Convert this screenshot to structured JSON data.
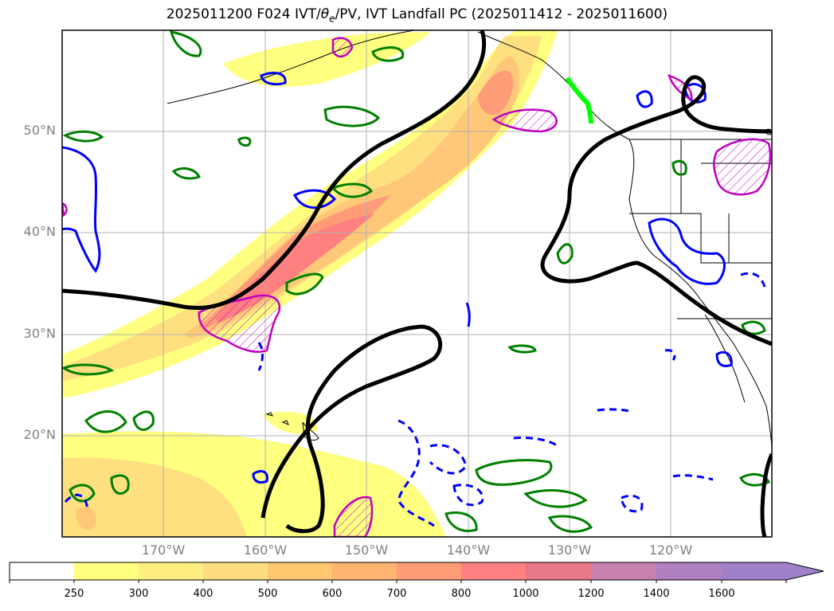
{
  "title": {
    "prefix": "2025011200 F024 IVT/",
    "theta_symbol": "θ",
    "theta_sub": "e",
    "suffix": "/PV, IVT Landfall PC (2025011412 - 2025011600)"
  },
  "map": {
    "extent_lon": [
      -180,
      -110
    ],
    "extent_lat": [
      10,
      60
    ],
    "lat_labels": [
      "50°N",
      "40°N",
      "30°N",
      "20°N"
    ],
    "lon_labels": [
      "170°W",
      "160°W",
      "150°W",
      "140°W",
      "130°W",
      "120°W"
    ],
    "gridlines": true,
    "contour_colors": {
      "ivt_ridge": "#000000",
      "theta_e": "#008000",
      "pv_positive": "#0000ff",
      "pv_negative_dashed": "#0000ff",
      "ivt_high": "#c000c0",
      "landfall_point": "#00ff00"
    }
  },
  "colorbar": {
    "units_extend": "max",
    "ticks": [
      "250",
      "300",
      "400",
      "500",
      "600",
      "700",
      "800",
      "1000",
      "1200",
      "1400",
      "1600"
    ],
    "colors": [
      "#ffffff",
      "#ffff80",
      "#ffee80",
      "#ffdc80",
      "#ffc870",
      "#ffb470",
      "#ff9c78",
      "#ff8080",
      "#e87888",
      "#c880b0",
      "#a080c8"
    ]
  }
}
